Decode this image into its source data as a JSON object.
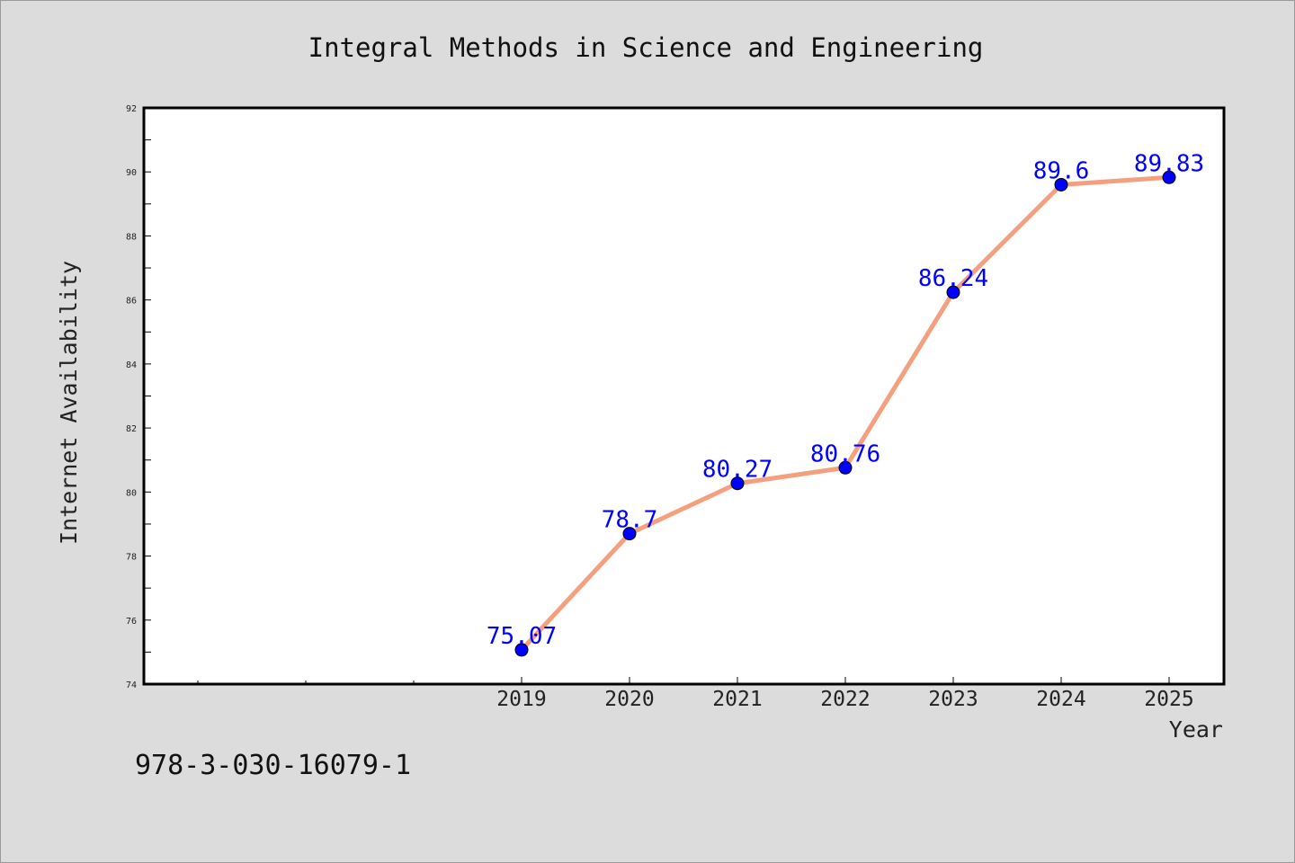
{
  "chart_data": {
    "type": "line",
    "title": "Integral Methods in Science and Engineering",
    "xlabel": "Year",
    "ylabel": "Internet Availability",
    "categories": [
      "2019",
      "2020",
      "2021",
      "2022",
      "2023",
      "2024",
      "2025"
    ],
    "series": [
      {
        "values": [
          75.07,
          78.7,
          80.27,
          80.76,
          86.24,
          89.6,
          89.83
        ],
        "labels": [
          "75.07",
          "78.7",
          "80.27",
          "80.76",
          "86.24",
          "89.6",
          "89.83"
        ],
        "line_color": "#f4a07e",
        "marker_color": "#0000ff"
      }
    ],
    "ylim": [
      74,
      92
    ],
    "yticks": [
      "74",
      "76",
      "78",
      "80",
      "82",
      "84",
      "86",
      "88",
      "90",
      "92"
    ],
    "grid": false,
    "legend": "none"
  },
  "footer": {
    "isbn": "978-3-030-16079-1"
  },
  "colors": {
    "background": "#dcdcdc",
    "plot_background": "#ffffff",
    "line": "#f4a07e",
    "marker": "#0000ff",
    "data_label": "#0000ff"
  }
}
